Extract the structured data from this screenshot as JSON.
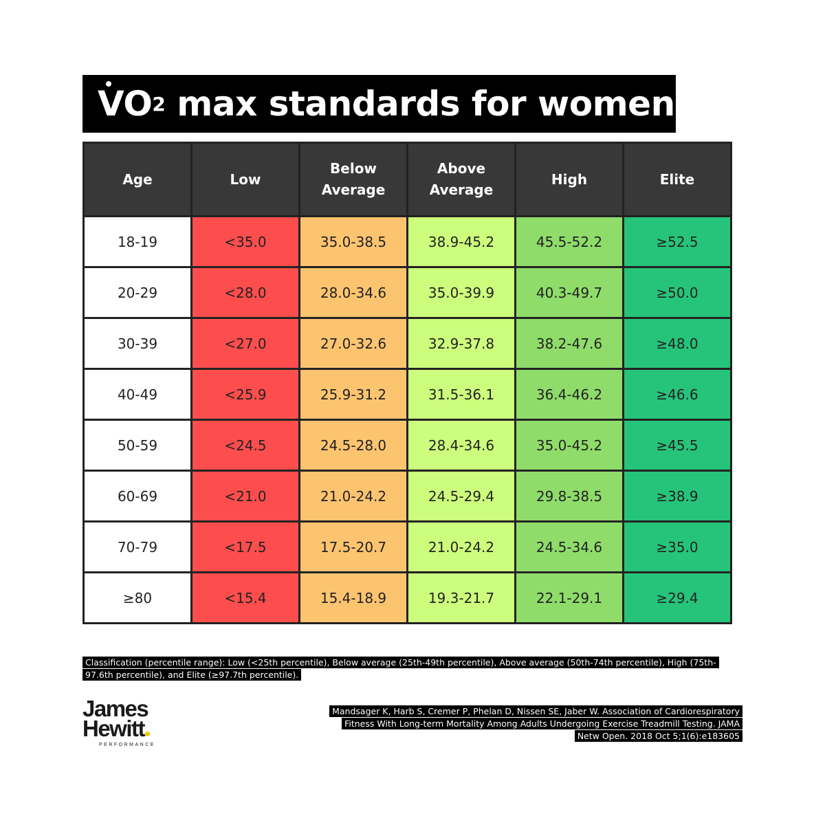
{
  "title": {
    "prefix": "VO",
    "subscript": "2",
    "rest": " max standards for women"
  },
  "headers": [
    "Age",
    "Low",
    "Below\nAverage",
    "Above\nAverage",
    "High",
    "Elite"
  ],
  "rows": [
    [
      "18-19",
      "<35.0",
      "35.0-38.5",
      "38.9-45.2",
      "45.5-52.2",
      "≥52.5"
    ],
    [
      "20-29",
      "<28.0",
      "28.0-34.6",
      "35.0-39.9",
      "40.3-49.7",
      "≥50.0"
    ],
    [
      "30-39",
      "<27.0",
      "27.0-32.6",
      "32.9-37.8",
      "38.2-47.6",
      "≥48.0"
    ],
    [
      "40-49",
      "<25.9",
      "25.9-31.2",
      "31.5-36.1",
      "36.4-46.2",
      "≥46.6"
    ],
    [
      "50-59",
      "<24.5",
      "24.5-28.0",
      "28.4-34.6",
      "35.0-45.2",
      "≥45.5"
    ],
    [
      "60-69",
      "<21.0",
      "21.0-24.2",
      "24.5-29.4",
      "29.8-38.5",
      "≥38.9"
    ],
    [
      "70-79",
      "<17.5",
      "17.5-20.7",
      "21.0-24.2",
      "24.5-34.6",
      "≥35.0"
    ],
    [
      "≥80",
      "<15.4",
      "15.4-18.9",
      "19.3-21.7",
      "22.1-29.1",
      "≥29.4"
    ]
  ],
  "colors": {
    "header": "#383838",
    "low": "#fe4d4d",
    "below_average": "#fdc470",
    "above_average": "#cdfd7c",
    "high": "#8fdc6a",
    "elite": "#26c47a"
  },
  "note": "Classification (percentile range): Low (<25th percentile), Below average (25th-49th percentile), Above average (50th-74th percentile), High (75th-97.6th percentile), and Elite (≥97.7th percentile).",
  "citation": "Mandsager K, Harb S, Cremer P, Phelan D, Nissen SE, Jaber W. Association of Cardiorespiratory Fitness With Long-term Mortality Among Adults Undergoing Exercise Treadmill Testing. JAMA Netw Open. 2018 Oct 5;1(6):e183605",
  "logo": {
    "line1": "James",
    "line2": "Hewitt",
    "tagline": "PERFORMANCE"
  }
}
